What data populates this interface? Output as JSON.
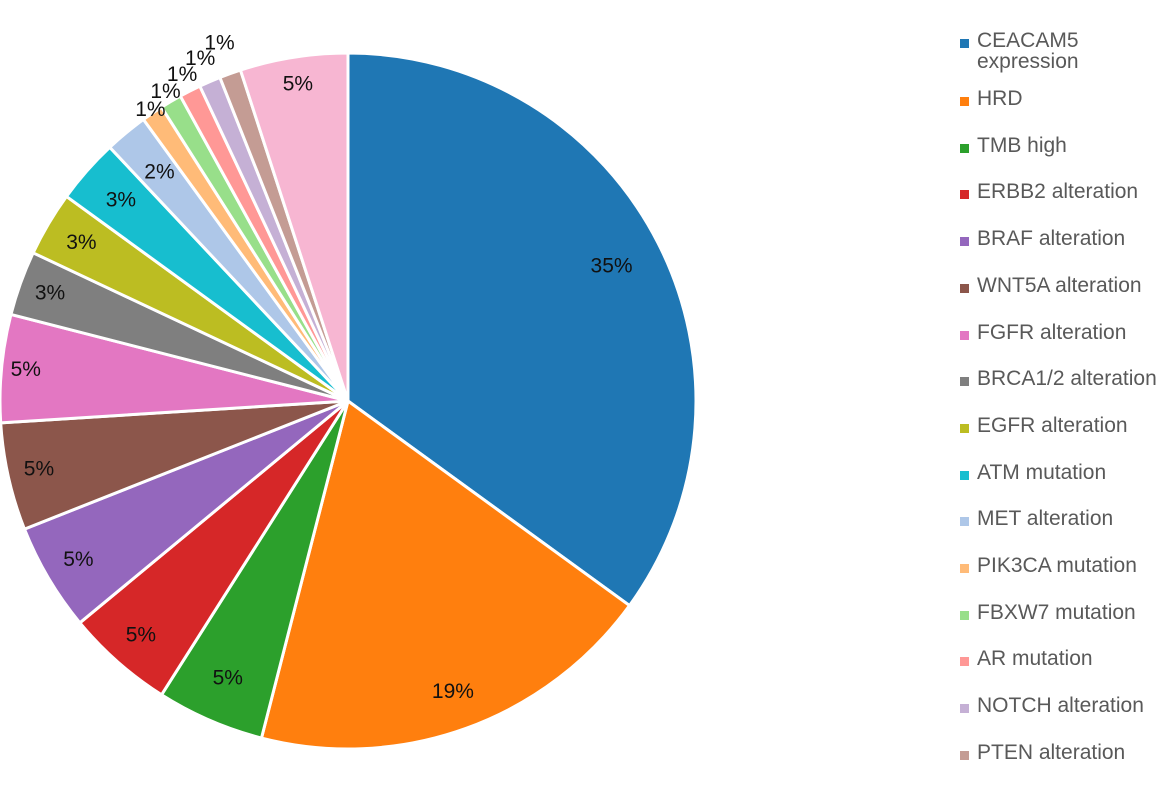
{
  "chart_data": {
    "type": "pie",
    "title": "",
    "slices": [
      {
        "name": "CEACAM5 expression",
        "value": 35,
        "label": "35%",
        "color": "#1f77b4"
      },
      {
        "name": "HRD",
        "value": 19,
        "label": "19%",
        "color": "#ff7f0e"
      },
      {
        "name": "TMB high",
        "value": 5,
        "label": "5%",
        "color": "#2ca02c"
      },
      {
        "name": "ERBB2 alteration",
        "value": 5,
        "label": "5%",
        "color": "#d62728"
      },
      {
        "name": "BRAF alteration",
        "value": 5,
        "label": "5%",
        "color": "#9467bd"
      },
      {
        "name": "WNT5A alteration",
        "value": 5,
        "label": "5%",
        "color": "#8c564b"
      },
      {
        "name": "FGFR alteration",
        "value": 5,
        "label": "5%",
        "color": "#e377c2"
      },
      {
        "name": "BRCA1/2 alteration",
        "value": 3,
        "label": "3%",
        "color": "#7f7f7f"
      },
      {
        "name": "EGFR alteration",
        "value": 3,
        "label": "3%",
        "color": "#bcbd22"
      },
      {
        "name": "ATM mutation",
        "value": 3,
        "label": "3%",
        "color": "#17becf"
      },
      {
        "name": "MET alteration",
        "value": 2,
        "label": "2%",
        "color": "#aec7e8"
      },
      {
        "name": "PIK3CA mutation",
        "value": 1,
        "label": "1%",
        "color": "#ffbb78"
      },
      {
        "name": "FBXW7 mutation",
        "value": 1,
        "label": "1%",
        "color": "#98df8a"
      },
      {
        "name": "AR mutation",
        "value": 1,
        "label": "1%",
        "color": "#ff9896"
      },
      {
        "name": "NOTCH alteration",
        "value": 1,
        "label": "1%",
        "color": "#c5b0d5"
      },
      {
        "name": "PTEN alteration",
        "value": 1,
        "label": "1%",
        "color": "#c49c94"
      },
      {
        "name": "",
        "value": 5,
        "label": "5%",
        "color": "#f7b6d2"
      }
    ],
    "legend_position": "right",
    "start_angle": "12 o'clock",
    "direction": "clockwise"
  }
}
